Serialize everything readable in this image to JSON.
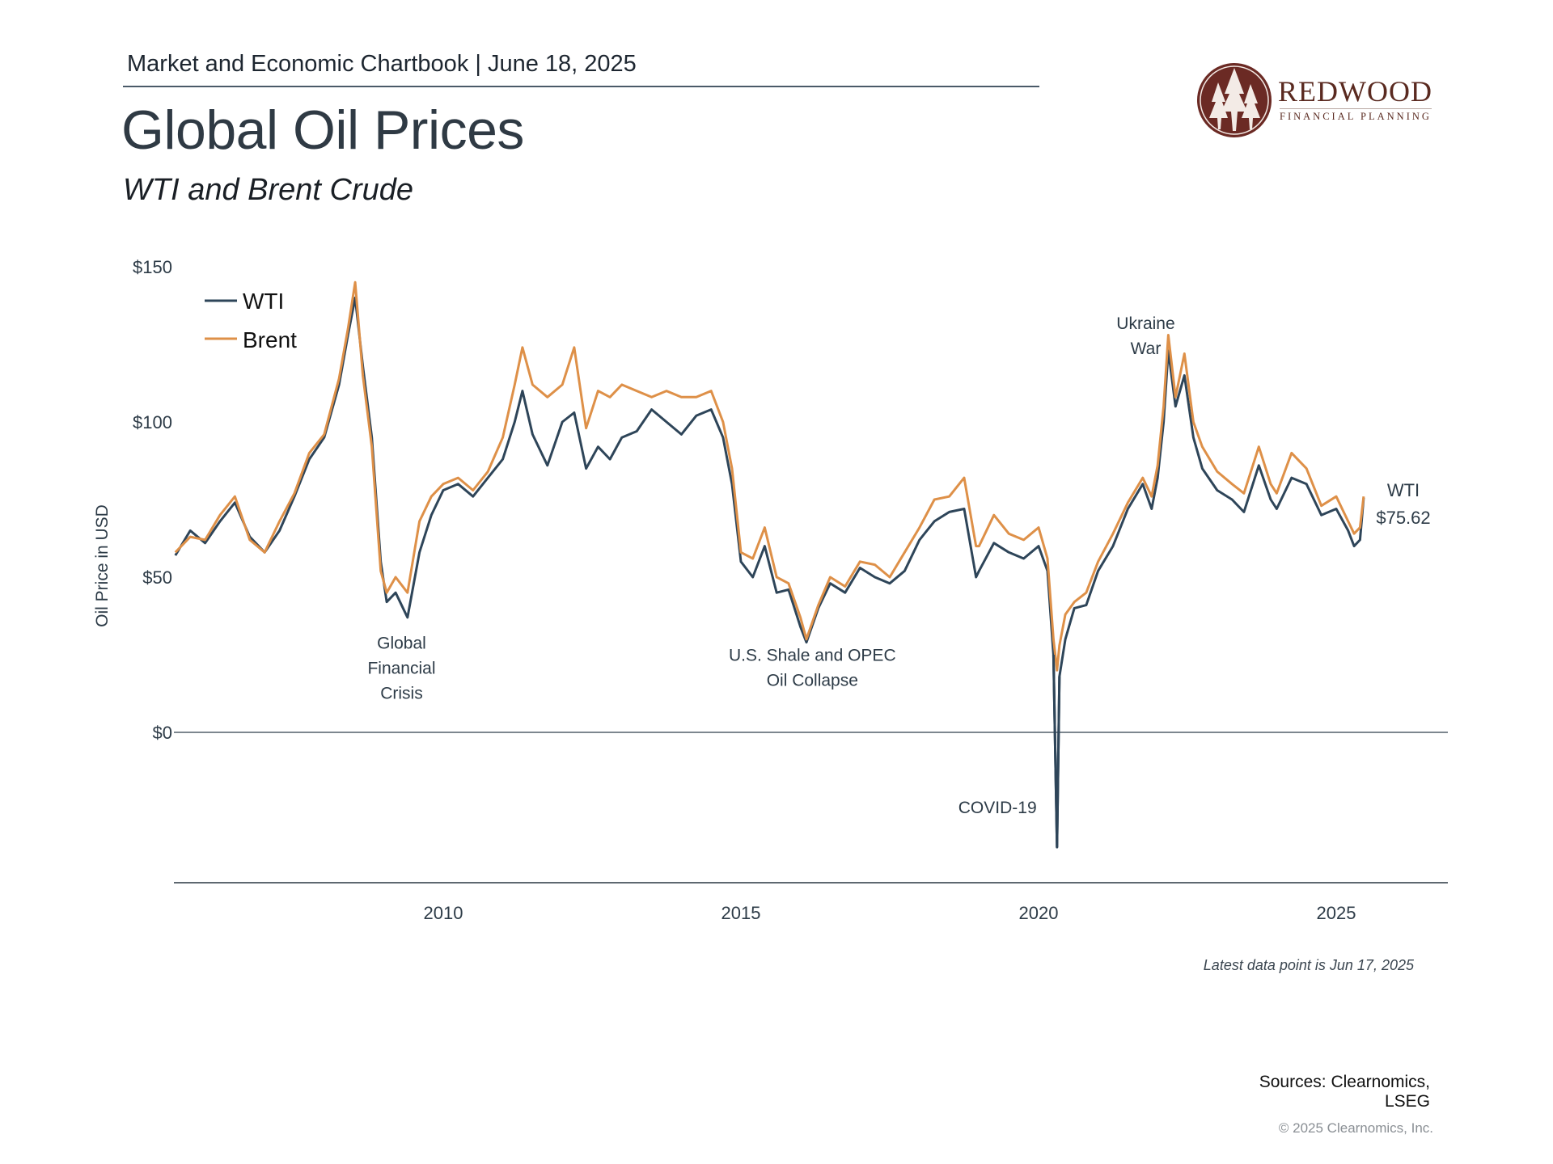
{
  "header": {
    "chartbook_line": "Market and Economic Chartbook | June 18, 2025",
    "title": "Global Oil Prices",
    "subtitle": "WTI and Brent Crude"
  },
  "logo": {
    "name": "REDWOOD",
    "tagline": "FINANCIAL PLANNING",
    "icon": "redwood-trees-icon",
    "color": "#6b2a24"
  },
  "footer": {
    "latest_note": "Latest data point is Jun 17, 2025",
    "sources_line1": "Sources: Clearnomics,",
    "sources_line2": "LSEG",
    "copyright": "© 2025 Clearnomics, Inc."
  },
  "chart_data": {
    "type": "line",
    "title": "Global Oil Prices",
    "subtitle": "WTI and Brent Crude",
    "xlabel": "",
    "ylabel": "Oil Price in USD",
    "xlim": [
      2005.47,
      2026.3
    ],
    "ylim": [
      -40,
      150
    ],
    "x_ticks": [
      2010,
      2015,
      2020,
      2025
    ],
    "x_tick_labels": [
      "2010",
      "2015",
      "2020",
      "2025"
    ],
    "y_ticks": [
      0,
      50,
      100,
      150
    ],
    "y_tick_labels": [
      "$0",
      "$50",
      "$100",
      "$150"
    ],
    "grid": false,
    "legend": {
      "position": "top-left",
      "entries": [
        "WTI",
        "Brent"
      ]
    },
    "colors": {
      "WTI": "#2e4559",
      "Brent": "#de9048",
      "axis": "#6b7680"
    },
    "end_label": {
      "series": "WTI",
      "line1": "WTI",
      "line2": "$75.62",
      "value": 75.62
    },
    "annotations": [
      {
        "lines": [
          "Global",
          "Financial",
          "Crisis"
        ],
        "x": 2009.3,
        "y": 27
      },
      {
        "lines": [
          "U.S. Shale and OPEC",
          "Oil Collapse"
        ],
        "x": 2016.2,
        "y": 23
      },
      {
        "lines": [
          "COVID-19"
        ],
        "x": 2019.9,
        "y": -26
      },
      {
        "lines": [
          "Ukraine",
          "War"
        ],
        "x": 2021.8,
        "y": 130
      }
    ],
    "x": [
      2005.5,
      2005.75,
      2006.0,
      2006.25,
      2006.5,
      2006.75,
      2007.0,
      2007.25,
      2007.5,
      2007.75,
      2008.0,
      2008.25,
      2008.4,
      2008.52,
      2008.65,
      2008.8,
      2008.95,
      2009.05,
      2009.2,
      2009.4,
      2009.6,
      2009.8,
      2010.0,
      2010.25,
      2010.5,
      2010.75,
      2011.0,
      2011.2,
      2011.33,
      2011.5,
      2011.75,
      2012.0,
      2012.2,
      2012.4,
      2012.6,
      2012.8,
      2013.0,
      2013.25,
      2013.5,
      2013.75,
      2014.0,
      2014.25,
      2014.5,
      2014.7,
      2014.85,
      2015.0,
      2015.2,
      2015.4,
      2015.6,
      2015.8,
      2016.0,
      2016.1,
      2016.3,
      2016.5,
      2016.75,
      2017.0,
      2017.25,
      2017.5,
      2017.75,
      2018.0,
      2018.25,
      2018.5,
      2018.75,
      2018.95,
      2019.0,
      2019.25,
      2019.5,
      2019.75,
      2020.0,
      2020.15,
      2020.25,
      2020.31,
      2020.35,
      2020.45,
      2020.6,
      2020.8,
      2021.0,
      2021.25,
      2021.5,
      2021.75,
      2021.9,
      2022.0,
      2022.1,
      2022.18,
      2022.3,
      2022.45,
      2022.6,
      2022.75,
      2023.0,
      2023.25,
      2023.45,
      2023.7,
      2023.9,
      2024.0,
      2024.25,
      2024.5,
      2024.75,
      2025.0,
      2025.2,
      2025.3,
      2025.4,
      2025.46
    ],
    "series": [
      {
        "name": "WTI",
        "values": [
          57,
          65,
          61,
          68,
          74,
          63,
          58,
          65,
          76,
          88,
          95,
          112,
          128,
          140,
          118,
          95,
          55,
          42,
          45,
          37,
          58,
          70,
          78,
          80,
          76,
          82,
          88,
          100,
          110,
          96,
          86,
          100,
          103,
          85,
          92,
          88,
          95,
          97,
          104,
          100,
          96,
          102,
          104,
          95,
          80,
          55,
          50,
          60,
          45,
          46,
          34,
          29,
          40,
          48,
          45,
          53,
          50,
          48,
          52,
          62,
          68,
          71,
          72,
          50,
          52,
          61,
          58,
          56,
          60,
          52,
          25,
          -37,
          18,
          30,
          40,
          41,
          52,
          60,
          72,
          80,
          72,
          82,
          100,
          123,
          105,
          115,
          95,
          85,
          78,
          75,
          71,
          86,
          75,
          72,
          82,
          80,
          70,
          72,
          65,
          60,
          62,
          75.6
        ]
      },
      {
        "name": "Brent",
        "values": [
          58,
          63,
          62,
          70,
          76,
          62,
          58,
          68,
          77,
          90,
          96,
          114,
          130,
          145,
          115,
          92,
          52,
          45,
          50,
          45,
          68,
          76,
          80,
          82,
          78,
          84,
          95,
          112,
          124,
          112,
          108,
          112,
          124,
          98,
          110,
          108,
          112,
          110,
          108,
          110,
          108,
          108,
          110,
          100,
          85,
          58,
          56,
          66,
          50,
          48,
          37,
          30,
          41,
          50,
          47,
          55,
          54,
          50,
          58,
          66,
          75,
          76,
          82,
          60,
          60,
          70,
          64,
          62,
          66,
          56,
          30,
          20,
          28,
          38,
          42,
          45,
          55,
          64,
          74,
          82,
          76,
          86,
          105,
          128,
          108,
          122,
          100,
          92,
          84,
          80,
          77,
          92,
          80,
          77,
          90,
          85,
          73,
          76,
          68,
          64,
          66,
          76
        ]
      }
    ]
  }
}
